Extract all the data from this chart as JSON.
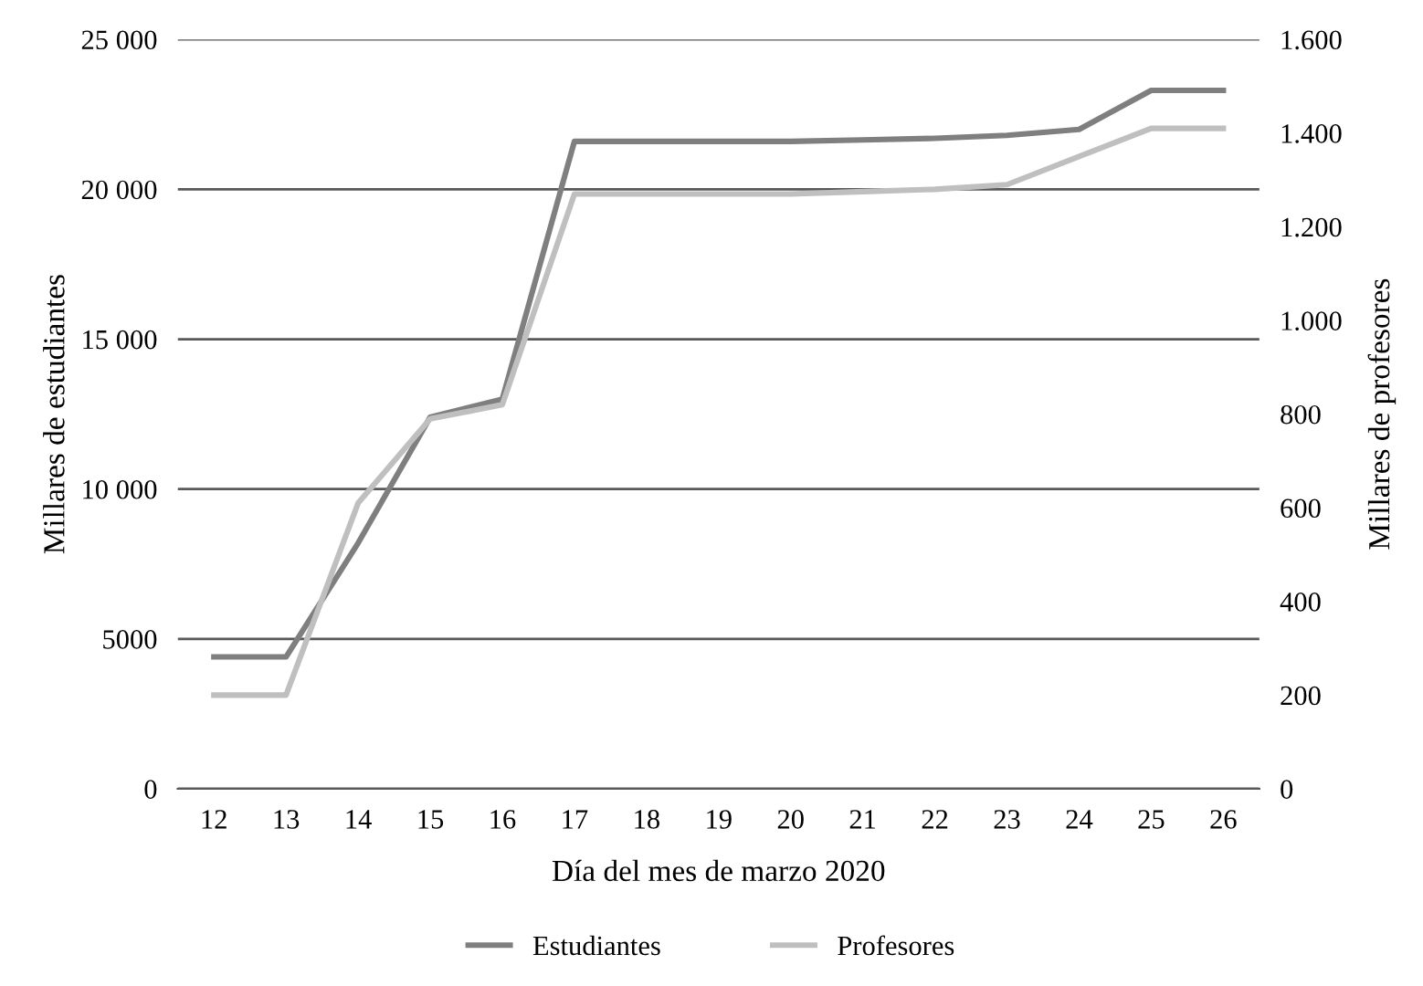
{
  "chart_data": {
    "type": "line",
    "xlabel": "Día del mes de marzo 2020",
    "ylabel": "Millares de estudiantes",
    "y2label": "Millares de profesores",
    "categories": [
      "12",
      "13",
      "14",
      "15",
      "16",
      "17",
      "18",
      "19",
      "20",
      "21",
      "22",
      "23",
      "24",
      "25",
      "26"
    ],
    "series": [
      {
        "name": "Estudiantes",
        "color": "#7f7f7f",
        "values": [
          4400,
          4400,
          8200,
          12400,
          13000,
          21600,
          21600,
          21600,
          21600,
          21650,
          21700,
          21800,
          22000,
          23300,
          23300
        ]
      },
      {
        "name": "Profesores",
        "color": "#bfbfbf",
        "axis": "y2",
        "values": [
          200,
          200,
          610,
          790,
          820,
          1270,
          1270,
          1270,
          1270,
          1275,
          1280,
          1290,
          1350,
          1410,
          1410
        ]
      }
    ],
    "ylim": [
      0,
      25000
    ],
    "yticks": [
      0,
      5000,
      {
        "value": 10000,
        "label": "10 000"
      },
      {
        "value": 15000,
        "label": "15 000"
      },
      {
        "value": 20000,
        "label": "20 000"
      },
      {
        "value": 25000,
        "label": "25 000"
      }
    ],
    "y2lim": [
      0,
      1600
    ],
    "y2ticks": [
      0,
      200,
      400,
      600,
      800,
      {
        "value": 1000,
        "label": "1.000"
      },
      {
        "value": 1200,
        "label": "1.200"
      },
      {
        "value": 1400,
        "label": "1.400"
      },
      {
        "value": 1600,
        "label": "1.600"
      }
    ],
    "grid": "y",
    "legend": "bottom",
    "marker": "none",
    "line_style": "solid"
  }
}
